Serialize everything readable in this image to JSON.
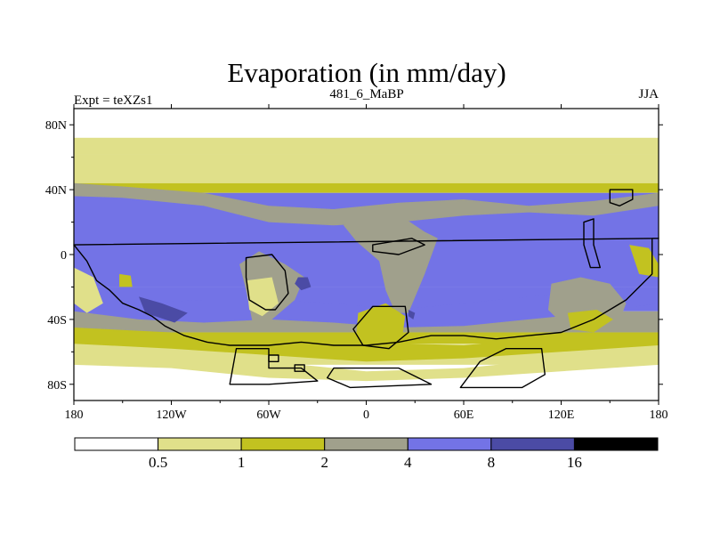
{
  "chart_data": {
    "type": "heatmap",
    "title": "Evaporation (in mm/day)",
    "left_label": "Expt = teXZs1",
    "center_label": "481_6_MaBP",
    "right_label": "JJA",
    "x_ticks": [
      {
        "value": -180,
        "label": "180"
      },
      {
        "value": -120,
        "label": "120W"
      },
      {
        "value": -60,
        "label": "60W"
      },
      {
        "value": 0,
        "label": "0"
      },
      {
        "value": 60,
        "label": "60E"
      },
      {
        "value": 120,
        "label": "120E"
      },
      {
        "value": 180,
        "label": "180"
      }
    ],
    "y_ticks": [
      {
        "value": 80,
        "label": "80N"
      },
      {
        "value": 40,
        "label": "40N"
      },
      {
        "value": 0,
        "label": "0"
      },
      {
        "value": -40,
        "label": "40S"
      },
      {
        "value": -80,
        "label": "80S"
      }
    ],
    "xlim": [
      -180,
      180
    ],
    "ylim": [
      -90,
      90
    ],
    "levels": [
      0.5,
      1,
      2,
      4,
      8,
      16
    ],
    "level_colors": [
      "#ffffff",
      "#e0e08a",
      "#c2c220",
      "#a0a08c",
      "#7373e6",
      "#4b4ba5",
      "#000000"
    ],
    "lat_bands": [
      {
        "lat": [
          72,
          90
        ],
        "level": 0
      },
      {
        "lat": [
          62,
          72
        ],
        "level": 1
      },
      {
        "lat": [
          44,
          62
        ],
        "level": 1
      },
      {
        "lat": [
          38,
          44
        ],
        "level": 2
      },
      {
        "lat": [
          -20,
          38
        ],
        "level": 4
      },
      {
        "lat": [
          -35,
          -20
        ],
        "level": 4
      },
      {
        "lat": [
          -48,
          -35
        ],
        "level": 3
      },
      {
        "lat": [
          -55,
          -48
        ],
        "level": 2
      },
      {
        "lat": [
          -68,
          -55
        ],
        "level": 1
      },
      {
        "lat": [
          -90,
          -68
        ],
        "level": 0
      }
    ]
  }
}
